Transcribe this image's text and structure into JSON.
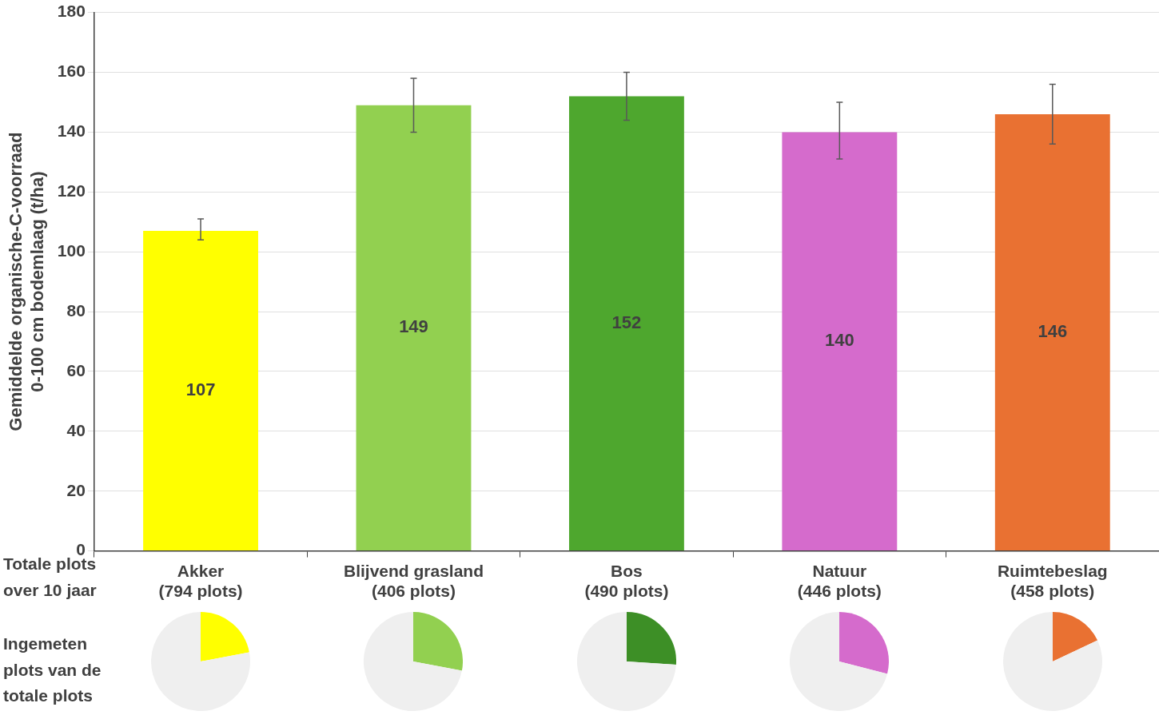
{
  "chart_data": [
    {
      "type": "bar",
      "ylabel": "Gemiddelde organische-C-voorraad\n0-100 cm bodemlaag (t/ha)",
      "categories": [
        "Akker\n(794 plots)",
        "Blijvend grasland\n(406 plots)",
        "Bos\n(490 plots)",
        "Natuur\n(446 plots)",
        "Ruimtebeslag\n(458 plots)"
      ],
      "values": [
        107,
        149,
        152,
        140,
        146
      ],
      "colors": [
        "#ffff00",
        "#92d050",
        "#4ea72e",
        "#d56bcc",
        "#e97132"
      ],
      "errors": [
        [
          104,
          111
        ],
        [
          140,
          158
        ],
        [
          144,
          160
        ],
        [
          131,
          150
        ],
        [
          136,
          156
        ]
      ],
      "ylim": [
        0,
        180
      ],
      "yticks": [
        0,
        20,
        40,
        60,
        80,
        100,
        120,
        140,
        160,
        180
      ],
      "grid": "y",
      "data_labels": true,
      "legend": false,
      "annotations": [
        "Totale plots\nover 10 jaar",
        "Ingemeten\nplots van de\ntotale plots"
      ]
    },
    {
      "type": "pie",
      "categories": [
        null,
        null
      ],
      "values": [
        22,
        78
      ],
      "colors": [
        "#ffff00",
        "#efefef"
      ]
    },
    {
      "type": "pie",
      "categories": [
        null,
        null
      ],
      "values": [
        28,
        72
      ],
      "colors": [
        "#92d050",
        "#efefef"
      ]
    },
    {
      "type": "pie",
      "categories": [
        null,
        null
      ],
      "values": [
        26,
        74
      ],
      "colors": [
        "#3d8f26",
        "#efefef"
      ]
    },
    {
      "type": "pie",
      "categories": [
        null,
        null
      ],
      "values": [
        29,
        71
      ],
      "colors": [
        "#d56bcc",
        "#efefef"
      ]
    },
    {
      "type": "pie",
      "categories": [
        null,
        null
      ],
      "values": [
        18,
        82
      ],
      "colors": [
        "#e97132",
        "#efefef"
      ]
    }
  ]
}
